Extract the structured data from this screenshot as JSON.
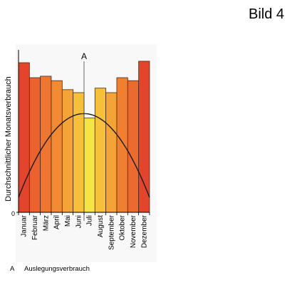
{
  "page": {
    "title": "Bild 4"
  },
  "chart_data": {
    "type": "bar",
    "ylabel": "Durchschnittlicher Monatsverbrauch",
    "y_origin_label": "0",
    "categories": [
      "Januar",
      "Februar",
      "März",
      "April",
      "Mai",
      "Juni",
      "Juli",
      "August",
      "September",
      "Oktober",
      "November",
      "Dezember"
    ],
    "values": [
      100,
      90,
      91,
      88,
      82,
      80,
      63,
      83,
      80,
      90,
      88,
      101
    ],
    "ylim": [
      0,
      104
    ],
    "bar_colors": [
      "#e2452c",
      "#eb622f",
      "#ee7631",
      "#f18a33",
      "#f4a436",
      "#f6c03a",
      "#f4e544",
      "#f6c03a",
      "#f4a436",
      "#f08030",
      "#eb6a2f",
      "#e2452c"
    ],
    "curve": {
      "type": "parabola",
      "start": [
        0,
        10
      ],
      "peak": [
        6,
        66
      ],
      "end": [
        12,
        10
      ],
      "color": "#1a1a1a"
    },
    "annotation": {
      "label": "A",
      "month_index": 6,
      "value": 66
    },
    "legend": [
      {
        "key": "A",
        "text": "Auslegungsverbrauch"
      }
    ],
    "grid": false
  }
}
